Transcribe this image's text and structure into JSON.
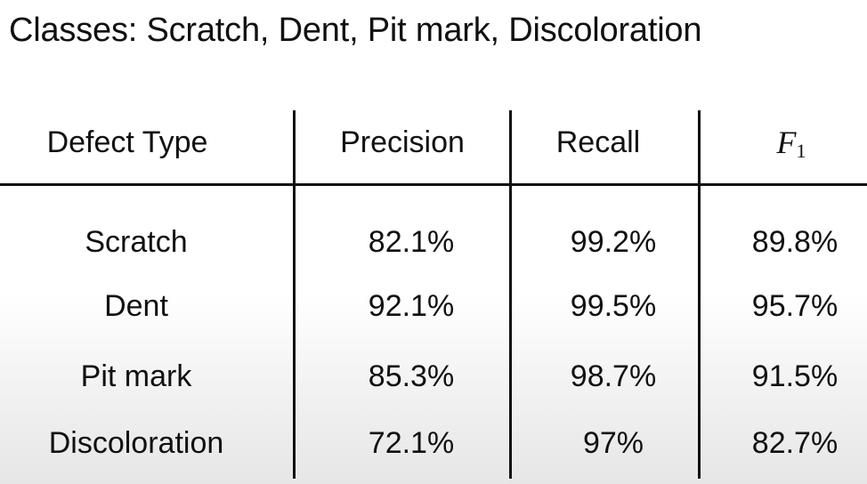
{
  "caption": "Classes: Scratch, Dent, Pit mark, Discoloration",
  "chart_data": {
    "type": "table",
    "columns": [
      "Defect Type",
      "Precision",
      "Recall",
      "F",
      "1"
    ],
    "header": {
      "defect_type": "Defect Type",
      "precision": "Precision",
      "recall": "Recall",
      "f1_symbol": "F",
      "f1_subscript": "1"
    },
    "rows": [
      {
        "defect": "Scratch",
        "precision": "82.1%",
        "recall": "99.2%",
        "f1": "89.8%"
      },
      {
        "defect": "Dent",
        "precision": "92.1%",
        "recall": "99.5%",
        "f1": "95.7%"
      },
      {
        "defect": "Pit mark",
        "precision": "85.3%",
        "recall": "98.7%",
        "f1": "91.5%"
      },
      {
        "defect": "Discoloration",
        "precision": "72.1%",
        "recall": "97%",
        "f1": "82.7%"
      }
    ]
  }
}
